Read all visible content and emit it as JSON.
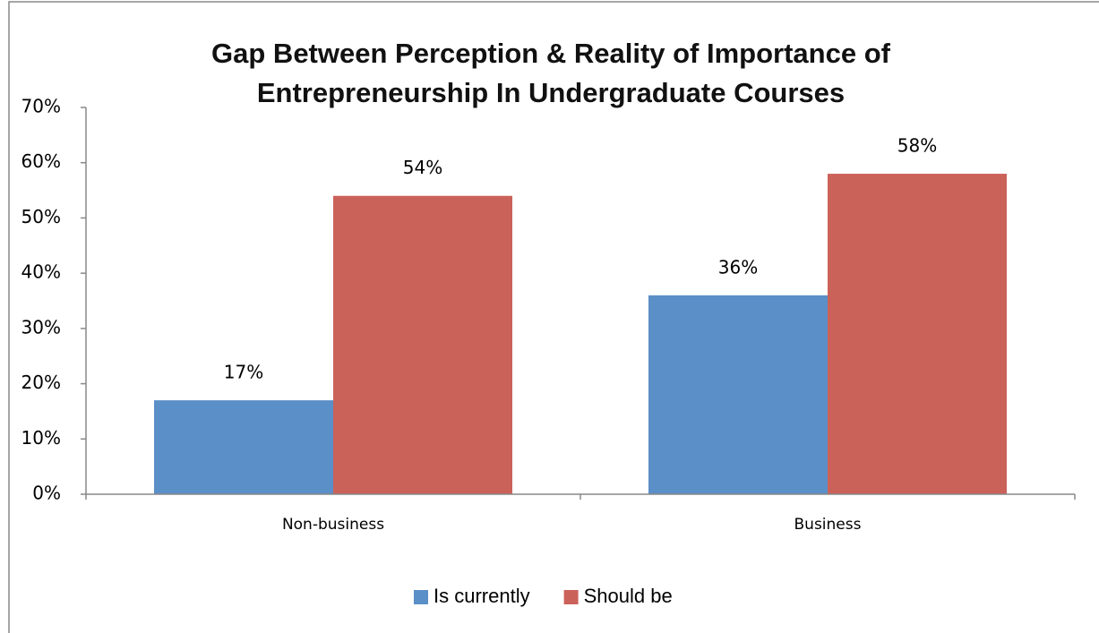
{
  "chart_data": {
    "type": "bar",
    "title": "Gap Between Perception & Reality of Importance of Entrepreneurship In Undergraduate Courses",
    "categories": [
      "Non-business",
      "Business"
    ],
    "series": [
      {
        "name": "Is currently",
        "color": "#5b8fc7",
        "values": [
          17,
          36
        ],
        "value_labels": [
          "17%",
          "36%"
        ]
      },
      {
        "name": "Should be",
        "color": "#cb6259",
        "values": [
          54,
          58
        ],
        "value_labels": [
          "54%",
          "58%"
        ]
      }
    ],
    "ylim": [
      0,
      70
    ],
    "yticks": [
      {
        "value": 0,
        "label": "0%"
      },
      {
        "value": 10,
        "label": "10%"
      },
      {
        "value": 20,
        "label": "20%"
      },
      {
        "value": 30,
        "label": "30%"
      },
      {
        "value": 40,
        "label": "40%"
      },
      {
        "value": 50,
        "label": "50%"
      },
      {
        "value": 60,
        "label": "60%"
      },
      {
        "value": 70,
        "label": "70%"
      }
    ],
    "grid": false,
    "legend": "bottom"
  }
}
